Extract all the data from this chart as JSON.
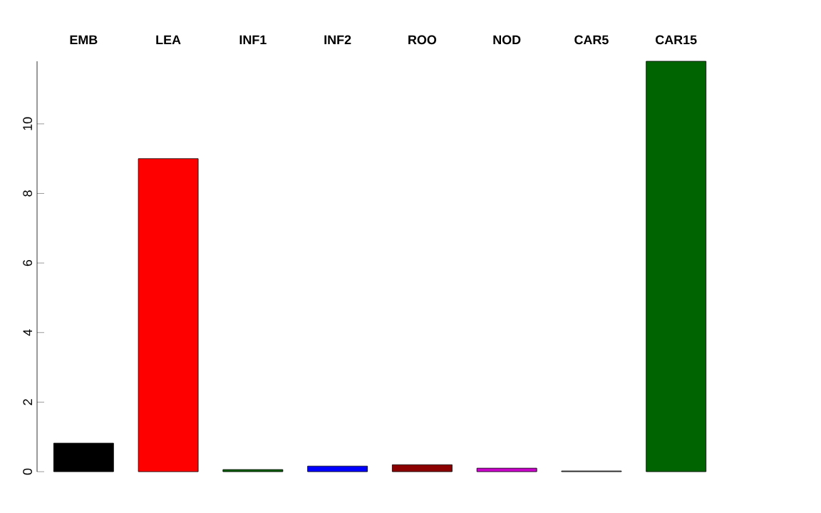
{
  "chart_data": {
    "type": "bar",
    "categories": [
      "EMB",
      "LEA",
      "INF1",
      "INF2",
      "ROO",
      "NOD",
      "CAR5",
      "CAR15"
    ],
    "values": [
      0.82,
      9.0,
      0.06,
      0.16,
      0.2,
      0.1,
      0.02,
      11.8
    ],
    "colors": [
      "#000000",
      "#ff0000",
      "#006400",
      "#0000ff",
      "#8b0000",
      "#cc00cc",
      "#808080",
      "#006400"
    ],
    "ylim": [
      0,
      11.8
    ],
    "yticks": [
      0,
      2,
      4,
      6,
      8,
      10
    ]
  }
}
